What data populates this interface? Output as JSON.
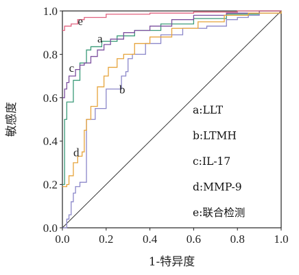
{
  "chart_data": {
    "type": "line",
    "title": "",
    "xlabel": "1-特异度",
    "ylabel": "敏感度",
    "xlim": [
      0,
      1
    ],
    "ylim": [
      0,
      1
    ],
    "x_ticks": [
      "0.0",
      "0.2",
      "0.4",
      "0.6",
      "0.8",
      "1.0"
    ],
    "y_ticks": [
      "0.0",
      "0.2",
      "0.4",
      "0.6",
      "0.8",
      "1.0"
    ],
    "grid": false,
    "legend_position": "right",
    "reference_line": {
      "points": [
        [
          0,
          0
        ],
        [
          1,
          1
        ]
      ],
      "color": "#333333"
    },
    "series": [
      {
        "id": "a",
        "label": "a",
        "legend": "a:LLT",
        "color": "#3a9a78",
        "points": [
          [
            0,
            0.2
          ],
          [
            0.01,
            0.5
          ],
          [
            0.02,
            0.58
          ],
          [
            0.05,
            0.68
          ],
          [
            0.08,
            0.76
          ],
          [
            0.11,
            0.82
          ],
          [
            0.13,
            0.835
          ],
          [
            0.18,
            0.86
          ],
          [
            0.25,
            0.885
          ],
          [
            0.33,
            0.91
          ],
          [
            0.45,
            0.94
          ],
          [
            0.6,
            0.965
          ],
          [
            0.75,
            0.985
          ],
          [
            0.9,
            1.0
          ],
          [
            1,
            1
          ]
        ]
      },
      {
        "id": "b",
        "label": "b",
        "legend": "b:LTMH",
        "color": "#8a86c9",
        "points": [
          [
            0,
            0
          ],
          [
            0.02,
            0.04
          ],
          [
            0.03,
            0.06
          ],
          [
            0.04,
            0.12
          ],
          [
            0.05,
            0.16
          ],
          [
            0.06,
            0.19
          ],
          [
            0.08,
            0.21
          ],
          [
            0.11,
            0.24
          ],
          [
            0.11,
            0.5
          ],
          [
            0.15,
            0.55
          ],
          [
            0.2,
            0.64
          ],
          [
            0.27,
            0.7
          ],
          [
            0.29,
            0.72
          ],
          [
            0.3,
            0.78
          ],
          [
            0.32,
            0.8
          ],
          [
            0.38,
            0.85
          ],
          [
            0.45,
            0.89
          ],
          [
            0.55,
            0.92
          ],
          [
            0.66,
            0.93
          ],
          [
            0.72,
            0.93
          ],
          [
            0.75,
            0.96
          ],
          [
            0.8,
            0.97
          ],
          [
            0.85,
            0.98
          ],
          [
            0.9,
            0.99
          ],
          [
            1,
            1
          ]
        ]
      },
      {
        "id": "c",
        "label": "c",
        "legend": "c:IL-17",
        "color": "#7b4f9e",
        "points": [
          [
            0,
            0.6
          ],
          [
            0.01,
            0.64
          ],
          [
            0.02,
            0.67
          ],
          [
            0.03,
            0.7
          ],
          [
            0.06,
            0.73
          ],
          [
            0.08,
            0.75
          ],
          [
            0.1,
            0.76
          ],
          [
            0.13,
            0.79
          ],
          [
            0.16,
            0.82
          ],
          [
            0.19,
            0.845
          ],
          [
            0.22,
            0.87
          ],
          [
            0.28,
            0.9
          ],
          [
            0.33,
            0.91
          ],
          [
            0.4,
            0.93
          ],
          [
            0.5,
            0.96
          ],
          [
            0.6,
            0.98
          ],
          [
            0.75,
            0.99
          ],
          [
            0.9,
            1.0
          ],
          [
            1,
            1
          ]
        ]
      },
      {
        "id": "d",
        "label": "d",
        "legend": "d:MMP-9",
        "color": "#e6a33a",
        "points": [
          [
            0,
            0.19
          ],
          [
            0.02,
            0.2
          ],
          [
            0.03,
            0.24
          ],
          [
            0.05,
            0.3
          ],
          [
            0.07,
            0.33
          ],
          [
            0.09,
            0.35
          ],
          [
            0.1,
            0.45
          ],
          [
            0.11,
            0.5
          ],
          [
            0.13,
            0.56
          ],
          [
            0.16,
            0.65
          ],
          [
            0.19,
            0.7
          ],
          [
            0.21,
            0.74
          ],
          [
            0.25,
            0.78
          ],
          [
            0.28,
            0.8
          ],
          [
            0.33,
            0.85
          ],
          [
            0.4,
            0.88
          ],
          [
            0.5,
            0.92
          ],
          [
            0.62,
            0.95
          ],
          [
            0.74,
            0.98
          ],
          [
            0.85,
            0.99
          ],
          [
            1,
            1
          ]
        ]
      },
      {
        "id": "e",
        "label": "e",
        "legend": "e:联合检测",
        "color": "#e0607e",
        "points": [
          [
            0,
            0.91
          ],
          [
            0.01,
            0.93
          ],
          [
            0.04,
            0.94
          ],
          [
            0.07,
            0.96
          ],
          [
            0.1,
            0.97
          ],
          [
            0.2,
            0.985
          ],
          [
            0.4,
            0.99
          ],
          [
            0.6,
            0.995
          ],
          [
            0.8,
            1.0
          ],
          [
            1,
            1
          ]
        ]
      }
    ]
  }
}
